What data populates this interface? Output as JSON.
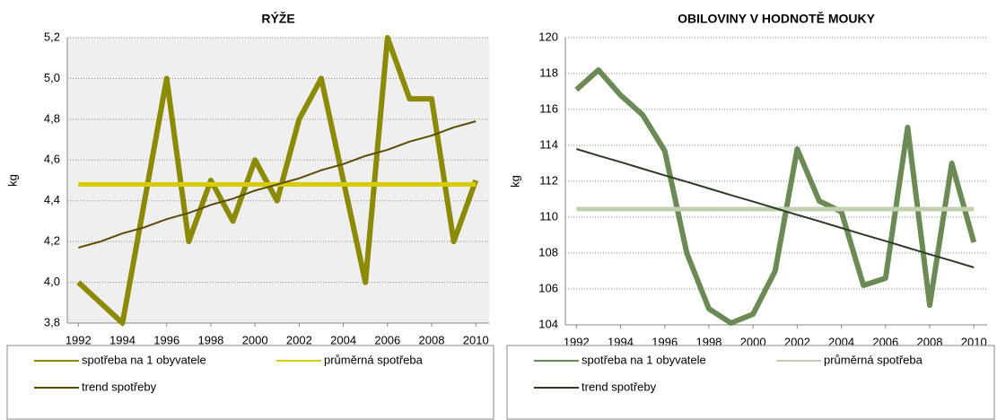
{
  "chart_data": [
    {
      "type": "line",
      "title": "RÝŽE",
      "ylabel": "kg",
      "x": [
        1992,
        1993,
        1994,
        1995,
        1996,
        1997,
        1998,
        1999,
        2000,
        2001,
        2002,
        2003,
        2004,
        2005,
        2006,
        2007,
        2008,
        2009,
        2010
      ],
      "xlim": [
        1991.5,
        2010.6
      ],
      "xticks": [
        1992,
        1994,
        1996,
        1998,
        2000,
        2002,
        2004,
        2006,
        2008,
        2010
      ],
      "ylim": [
        3.8,
        5.2
      ],
      "yticks": [
        {
          "value": 3.8,
          "label": "3,8"
        },
        {
          "value": 4.0,
          "label": "4,0"
        },
        {
          "value": 4.2,
          "label": "4,2"
        },
        {
          "value": 4.4,
          "label": "4,4"
        },
        {
          "value": 4.6,
          "label": "4,6"
        },
        {
          "value": 4.8,
          "label": "4,8"
        },
        {
          "value": 5.0,
          "label": "5,0"
        },
        {
          "value": 5.2,
          "label": "5,2"
        }
      ],
      "grid": true,
      "background": "#efefef",
      "series": [
        {
          "name": "spotřeba na 1 obyvatele",
          "color": "#8c8a00",
          "values": [
            4.0,
            3.9,
            3.8,
            4.4,
            5.0,
            4.2,
            4.5,
            4.3,
            4.6,
            4.4,
            4.8,
            5.0,
            4.5,
            4.0,
            5.2,
            4.9,
            4.9,
            4.2,
            4.5
          ]
        },
        {
          "name": "průměrná spotřeba",
          "color": "#d6cc00",
          "values": [
            4.48,
            4.48,
            4.48,
            4.48,
            4.48,
            4.48,
            4.48,
            4.48,
            4.48,
            4.48,
            4.48,
            4.48,
            4.48,
            4.48,
            4.48,
            4.48,
            4.48,
            4.48,
            4.48
          ]
        },
        {
          "name": "trend spotřeby",
          "color": "#5c4c00",
          "values": [
            4.17,
            4.2,
            4.24,
            4.27,
            4.31,
            4.34,
            4.38,
            4.41,
            4.45,
            4.48,
            4.51,
            4.55,
            4.58,
            4.62,
            4.65,
            4.69,
            4.72,
            4.76,
            4.79
          ]
        }
      ]
    },
    {
      "type": "line",
      "title": "OBILOVINY V HODNOTĚ MOUKY",
      "ylabel": "kg",
      "x": [
        1992,
        1993,
        1994,
        1995,
        1996,
        1997,
        1998,
        1999,
        2000,
        2001,
        2002,
        2003,
        2004,
        2005,
        2006,
        2007,
        2008,
        2009,
        2010
      ],
      "xlim": [
        1991.5,
        2010.6
      ],
      "xticks": [
        1992,
        1994,
        1996,
        1998,
        2000,
        2002,
        2004,
        2006,
        2008,
        2010
      ],
      "ylim": [
        104,
        120
      ],
      "yticks": [
        104,
        106,
        108,
        110,
        112,
        114,
        116,
        118,
        120
      ],
      "grid": true,
      "background": "#ffffff",
      "series": [
        {
          "name": "spotřeba na 1 obyvatele",
          "color": "#6b8a55",
          "values": [
            117.1,
            118.2,
            116.8,
            115.7,
            113.7,
            108.0,
            104.9,
            104.1,
            104.6,
            107.0,
            113.8,
            110.9,
            110.3,
            106.2,
            106.6,
            115.0,
            105.1,
            113.0,
            108.6
          ]
        },
        {
          "name": "průměrná spotřeba",
          "color": "#c3d0b0",
          "values": [
            110.45,
            110.45,
            110.45,
            110.45,
            110.45,
            110.45,
            110.45,
            110.45,
            110.45,
            110.45,
            110.45,
            110.45,
            110.45,
            110.45,
            110.45,
            110.45,
            110.45,
            110.45,
            110.45
          ]
        },
        {
          "name": "trend spotřeby",
          "color": "#2f3b26",
          "values": [
            113.8,
            113.43,
            113.07,
            112.7,
            112.33,
            111.97,
            111.6,
            111.23,
            110.87,
            110.5,
            110.13,
            109.77,
            109.4,
            109.03,
            108.67,
            108.3,
            107.93,
            107.57,
            107.2
          ]
        }
      ]
    }
  ]
}
